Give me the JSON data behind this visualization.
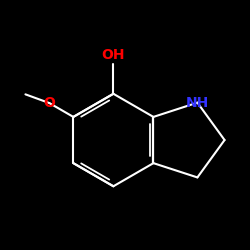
{
  "background": "#000000",
  "bond_color": "#ffffff",
  "bond_width": 1.5,
  "atom_colors": {
    "O": "#ff0000",
    "N": "#3333ff",
    "C": "#ffffff"
  },
  "OH_label": "OH",
  "NH_label": "NH",
  "O_label": "O",
  "font_size": 10
}
